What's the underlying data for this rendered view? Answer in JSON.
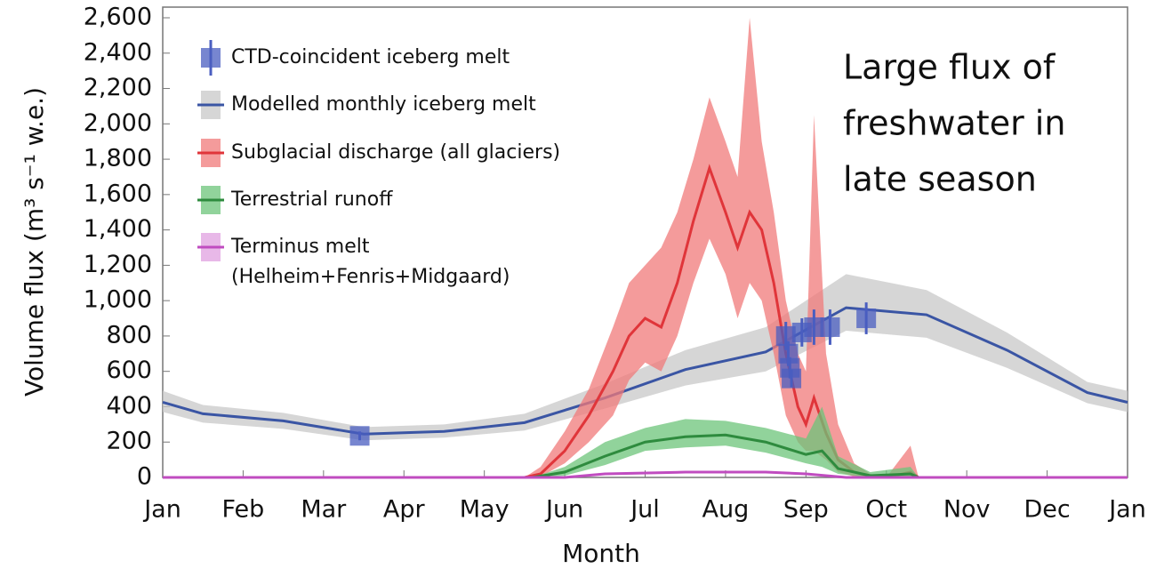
{
  "chart_data": {
    "type": "line",
    "annotation": [
      "Large flux of",
      "freshwater in",
      "late season"
    ],
    "x_label": "Month",
    "y_label": "Volume flux (m³ s⁻¹ w.e.)",
    "xlim": [
      0,
      12
    ],
    "xticks": [
      {
        "value": 0,
        "label": "Jan"
      },
      {
        "value": 1,
        "label": "Feb"
      },
      {
        "value": 2,
        "label": "Mar"
      },
      {
        "value": 3,
        "label": "Apr"
      },
      {
        "value": 4,
        "label": "May"
      },
      {
        "value": 5,
        "label": "Jun"
      },
      {
        "value": 6,
        "label": "Jul"
      },
      {
        "value": 7,
        "label": "Aug"
      },
      {
        "value": 8,
        "label": "Sep"
      },
      {
        "value": 9,
        "label": "Oct"
      },
      {
        "value": 10,
        "label": "Nov"
      },
      {
        "value": 11,
        "label": "Dec"
      },
      {
        "value": 12,
        "label": "Jan"
      }
    ],
    "ylim": [
      0,
      2600
    ],
    "yticks": [
      0,
      200,
      400,
      600,
      800,
      {
        "value": 1000,
        "label": "1,000"
      },
      {
        "value": 1200,
        "label": "1,200"
      },
      {
        "value": 1400,
        "label": "1,400"
      },
      {
        "value": 1600,
        "label": "1,600"
      },
      {
        "value": 1800,
        "label": "1,800"
      },
      {
        "value": 2000,
        "label": "2,000"
      },
      {
        "value": 2200,
        "label": "2,200"
      },
      {
        "value": 2400,
        "label": "2,400"
      },
      {
        "value": 2600,
        "label": "2,600"
      }
    ],
    "series": [
      {
        "name": "CTD-coincident iceberg melt",
        "kind": "points",
        "color": "#4a5ec0",
        "x": [
          2.45,
          7.75,
          7.78,
          7.8,
          7.82,
          7.95,
          8.1,
          8.3,
          8.75
        ],
        "values": [
          235,
          800,
          700,
          620,
          560,
          820,
          850,
          850,
          900
        ],
        "errors": [
          25,
          80,
          70,
          60,
          50,
          80,
          100,
          100,
          90
        ]
      },
      {
        "name": "Modelled monthly iceberg melt",
        "kind": "line",
        "color": "#3a55a4",
        "band_color": "#c8c8c8",
        "x": [
          0,
          0.5,
          1.5,
          2.5,
          3.5,
          4.5,
          5.5,
          6.5,
          7.5,
          8.5,
          9.5,
          10.5,
          11.5,
          12
        ],
        "values": [
          425,
          360,
          320,
          245,
          260,
          310,
          450,
          610,
          710,
          960,
          920,
          720,
          480,
          425
        ],
        "lower": [
          370,
          310,
          275,
          210,
          225,
          265,
          390,
          520,
          600,
          830,
          790,
          620,
          420,
          370
        ],
        "upper": [
          490,
          410,
          365,
          285,
          300,
          360,
          530,
          720,
          850,
          1150,
          1060,
          820,
          540,
          490
        ]
      },
      {
        "name": "Subglacial discharge (all glaciers)",
        "kind": "line",
        "color": "#e0353a",
        "band_color": "#f07a7a",
        "x": [
          0,
          3.85,
          4.5,
          4.7,
          5.0,
          5.3,
          5.6,
          5.8,
          6.0,
          6.2,
          6.4,
          6.6,
          6.8,
          7.0,
          7.15,
          7.3,
          7.45,
          7.6,
          7.75,
          7.9,
          8.0,
          8.1,
          8.25,
          8.4,
          8.6,
          8.8,
          9.0,
          9.3,
          9.4,
          12
        ],
        "values": [
          0,
          0,
          0,
          20,
          150,
          350,
          600,
          800,
          900,
          850,
          1100,
          1450,
          1750,
          1500,
          1300,
          1500,
          1400,
          1100,
          700,
          400,
          300,
          450,
          250,
          100,
          30,
          5,
          0,
          30,
          0,
          0
        ],
        "lower": [
          0,
          0,
          0,
          5,
          80,
          200,
          350,
          550,
          650,
          600,
          800,
          1100,
          1350,
          1150,
          900,
          1100,
          1000,
          700,
          350,
          200,
          150,
          150,
          100,
          30,
          5,
          0,
          0,
          0,
          0,
          0
        ],
        "upper": [
          0,
          0,
          0,
          60,
          260,
          500,
          850,
          1100,
          1200,
          1300,
          1500,
          1800,
          2150,
          1900,
          1700,
          2600,
          1900,
          1500,
          1000,
          700,
          600,
          2050,
          700,
          300,
          80,
          20,
          0,
          180,
          0,
          0
        ]
      },
      {
        "name": "Terrestrial runoff",
        "kind": "line",
        "color": "#2e8b3e",
        "band_color": "#6cc47a",
        "x": [
          0,
          4.6,
          5.0,
          5.5,
          6.0,
          6.5,
          7.0,
          7.5,
          8.0,
          8.2,
          8.4,
          8.8,
          9.3,
          9.4,
          12
        ],
        "values": [
          0,
          0,
          30,
          120,
          200,
          230,
          240,
          200,
          130,
          150,
          50,
          10,
          20,
          0,
          0
        ],
        "lower": [
          0,
          0,
          10,
          70,
          150,
          170,
          180,
          140,
          80,
          60,
          20,
          0,
          0,
          0,
          0
        ],
        "upper": [
          0,
          0,
          60,
          200,
          280,
          330,
          320,
          280,
          220,
          400,
          120,
          30,
          60,
          0,
          0
        ]
      },
      {
        "name": "Terminus melt\n(Helheim+Fenris+Midgaard)",
        "kind": "line",
        "color": "#c04cc0",
        "band_color": "#e0a0e0",
        "x": [
          0,
          5.0,
          5.5,
          6.5,
          7.5,
          8.0,
          8.5,
          12
        ],
        "values": [
          0,
          0,
          20,
          30,
          30,
          20,
          0,
          0
        ]
      }
    ]
  }
}
